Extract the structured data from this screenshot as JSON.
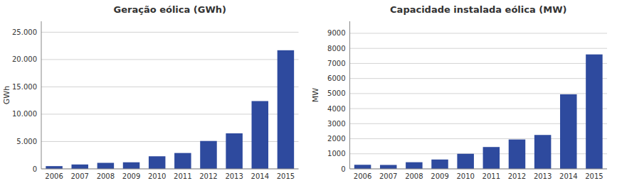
{
  "chart_data": [
    {
      "type": "bar",
      "title": "Geração eólica (GWh)",
      "ylabel": "GWh",
      "categories": [
        "2006",
        "2007",
        "2008",
        "2009",
        "2010",
        "2011",
        "2012",
        "2013",
        "2014",
        "2015"
      ],
      "values": [
        500,
        800,
        1100,
        1200,
        2300,
        2900,
        5100,
        6500,
        12400,
        21700
      ],
      "color": "#2E4A9E",
      "ylim": [
        0,
        27000
      ],
      "yticks": [
        0,
        {
          "value": 5000,
          "label": "5.000"
        },
        {
          "value": 10000,
          "label": "10.000"
        },
        {
          "value": 15000,
          "label": "15.000"
        },
        {
          "value": 20000,
          "label": "20.000"
        },
        {
          "value": 25000,
          "label": "25.000"
        }
      ],
      "grid": true
    },
    {
      "type": "bar",
      "title": "Capacidade instalada eólica (MW)",
      "ylabel": "MW",
      "categories": [
        "2006",
        "2007",
        "2008",
        "2009",
        "2010",
        "2011",
        "2012",
        "2013",
        "2014",
        "2015"
      ],
      "values": [
        270,
        260,
        440,
        620,
        1000,
        1450,
        1950,
        2250,
        4950,
        7600
      ],
      "color": "#2E4A9E",
      "ylim": [
        0,
        9800
      ],
      "yticks": [
        0,
        1000,
        2000,
        3000,
        4000,
        5000,
        6000,
        7000,
        8000,
        9000
      ],
      "grid": true
    }
  ]
}
